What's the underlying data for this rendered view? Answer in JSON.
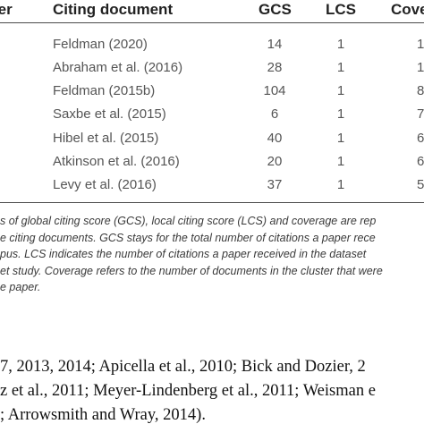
{
  "table": {
    "headers": {
      "cluster": "ter",
      "citing_document": "Citing document",
      "gcs": "GCS",
      "lcs": "LCS",
      "coverage": "Cover"
    },
    "rows": [
      {
        "doc": "Feldman (2020)",
        "gcs": "14",
        "lcs": "1",
        "cov": "1"
      },
      {
        "doc": "Abraham et al. (2016)",
        "gcs": "28",
        "lcs": "1",
        "cov": "1"
      },
      {
        "doc": "Feldman (2015b)",
        "gcs": "104",
        "lcs": "1",
        "cov": "8"
      },
      {
        "doc": "Saxbe et al. (2015)",
        "gcs": "6",
        "lcs": "1",
        "cov": "7"
      },
      {
        "doc": "Hibel et al. (2015)",
        "gcs": "40",
        "lcs": "1",
        "cov": "6"
      },
      {
        "doc": "Atkinson et al. (2016)",
        "gcs": "20",
        "lcs": "1",
        "cov": "6"
      },
      {
        "doc": "Levy et al. (2016)",
        "gcs": "37",
        "lcs": "1",
        "cov": "5"
      }
    ]
  },
  "caption": {
    "lines": [
      "s of global citing score (GCS), local citing score (LCS) and coverage are rep",
      "e citing documents. GCS stays for the total number of citations a paper rece",
      "pus. LCS indicates the number of citations a paper received in the dataset",
      "et study. Coverage refers to the number of documents in the cluster that were",
      "e paper."
    ]
  },
  "body": {
    "lines": [
      "7, 2013, 2014; Apicella et al., 2010; Bick and Dozier, 2",
      "z et al., 2011; Meyer-Lindenberg et al., 2011; Weisman e",
      "; Arrowsmith and Wray, 2014)."
    ]
  }
}
